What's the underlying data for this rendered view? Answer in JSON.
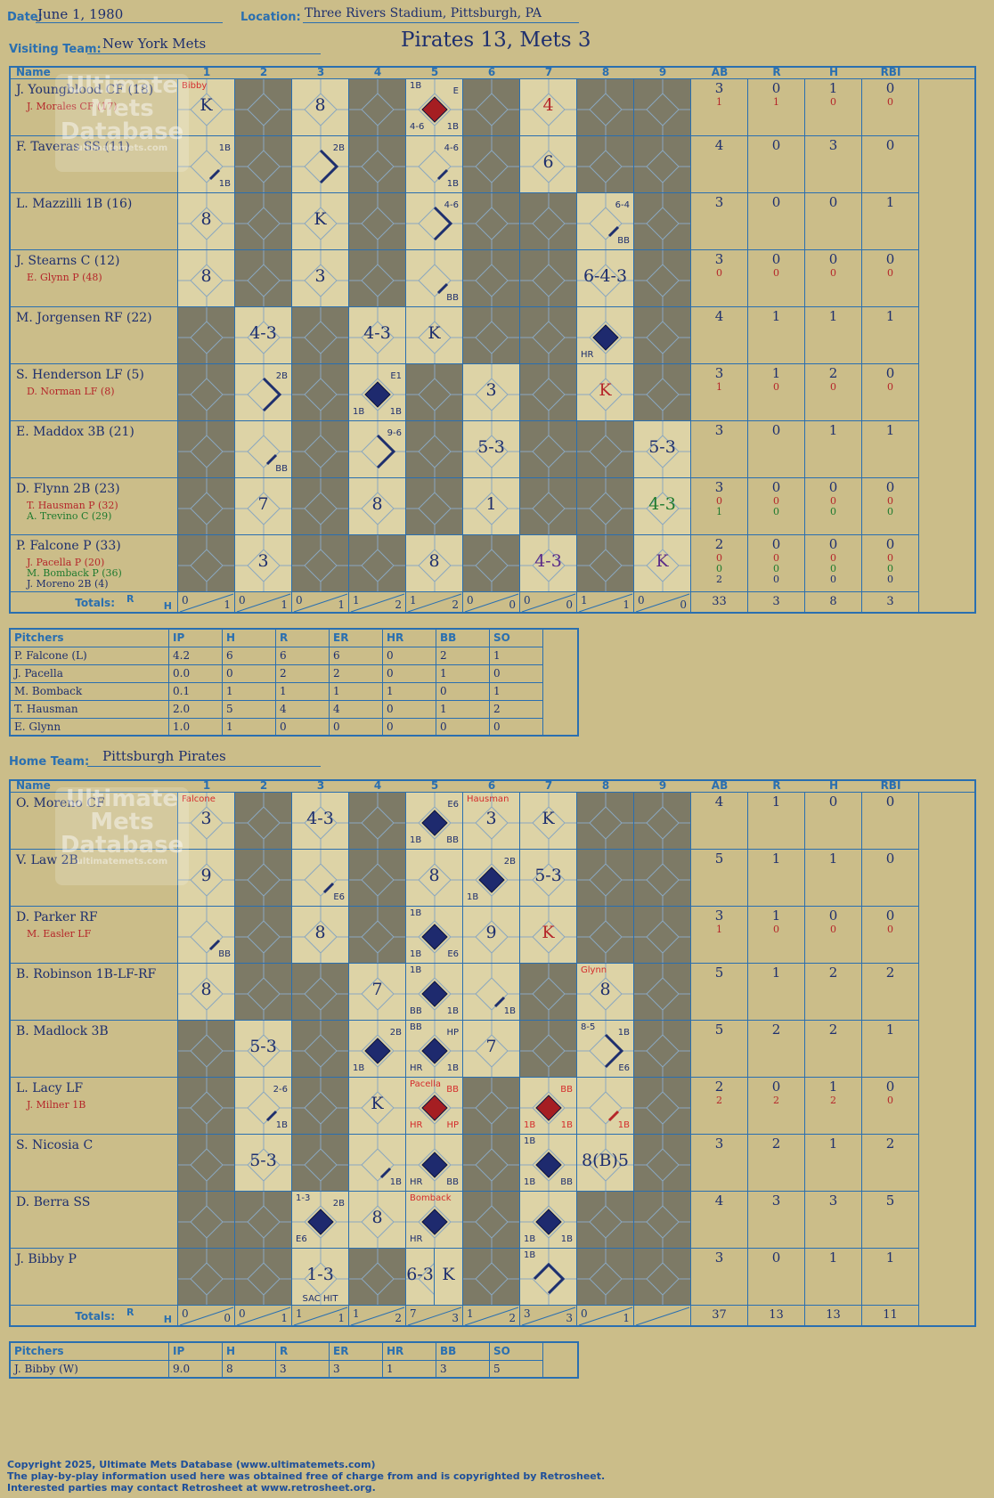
{
  "header": {
    "date_label": "Date:",
    "date": "June 1, 1980",
    "location_label": "Location:",
    "location": "Three Rivers Stadium, Pittsburgh, PA",
    "title": "Pirates 13, Mets 3",
    "visiting_label": "Visiting Team:",
    "visiting_team": "New York Mets",
    "home_label": "Home Team:",
    "home_team": "Pittsburgh Pirates"
  },
  "columns": {
    "name": "Name",
    "innings": [
      "1",
      "2",
      "3",
      "4",
      "5",
      "6",
      "7",
      "8",
      "9"
    ],
    "stats": [
      "AB",
      "R",
      "H",
      "RBI"
    ],
    "totals_label": "Totals:",
    "r": "R",
    "h": "H"
  },
  "watermark": {
    "line1": "Ultimate",
    "line2": "Mets",
    "line3": "Database",
    "url": "ultimatemets.com"
  },
  "visitors": {
    "rows": [
      {
        "name": "J. Youngblood CF (18)",
        "subs": [
          {
            "text": "J. Morales CF (17)",
            "c": "red"
          }
        ],
        "ab": [
          "3",
          "1"
        ],
        "r": [
          "0",
          "1"
        ],
        "h": [
          "1",
          "0"
        ],
        "rbi": [
          "0",
          "0"
        ],
        "cells": [
          {
            "i": 1,
            "res": "K",
            "tl": "Bibby",
            "tlc": "red"
          },
          {
            "i": 3,
            "res": "8"
          },
          {
            "i": 5,
            "dia": "red",
            "tl": "1B",
            "tr": "E",
            "bl": "4-6",
            "br": "1B"
          },
          {
            "i": 7,
            "res": "4",
            "rc": "red"
          }
        ]
      },
      {
        "name": "F. Taveras SS (11)",
        "subs": [],
        "ab": [
          "4"
        ],
        "r": [
          "0"
        ],
        "h": [
          "3"
        ],
        "rbi": [
          "0"
        ],
        "cells": [
          {
            "i": 1,
            "path": "1b",
            "tr": "1B",
            "br": "1B"
          },
          {
            "i": 3,
            "path": "2b",
            "tr": "2B"
          },
          {
            "i": 5,
            "path": "1b",
            "tr": "4-6",
            "br": "1B"
          },
          {
            "i": 7,
            "res": "6"
          }
        ]
      },
      {
        "name": "L. Mazzilli 1B (16)",
        "subs": [],
        "ab": [
          "3"
        ],
        "r": [
          "0"
        ],
        "h": [
          "0"
        ],
        "rbi": [
          "1"
        ],
        "cells": [
          {
            "i": 1,
            "res": "8"
          },
          {
            "i": 3,
            "res": "K"
          },
          {
            "i": 5,
            "path": "2b",
            "tr": "4-6"
          },
          {
            "i": 8,
            "path": "1b",
            "tr": "6-4",
            "br": "BB"
          }
        ]
      },
      {
        "name": "J. Stearns C (12)",
        "subs": [
          {
            "text": "E. Glynn P (48)",
            "c": "red"
          }
        ],
        "ab": [
          "3",
          "0"
        ],
        "r": [
          "0",
          "0"
        ],
        "h": [
          "0",
          "0"
        ],
        "rbi": [
          "0",
          "0"
        ],
        "cells": [
          {
            "i": 1,
            "res": "8"
          },
          {
            "i": 3,
            "res": "3"
          },
          {
            "i": 5,
            "path": "1b",
            "br": "BB"
          },
          {
            "i": 8,
            "res": "6-4-3"
          }
        ]
      },
      {
        "name": "M. Jorgensen RF (22)",
        "subs": [],
        "ab": [
          "4"
        ],
        "r": [
          "1"
        ],
        "h": [
          "1"
        ],
        "rbi": [
          "1"
        ],
        "cells": [
          {
            "i": 2,
            "res": "4-3"
          },
          {
            "i": 4,
            "res": "4-3"
          },
          {
            "i": 5,
            "res": "K"
          },
          {
            "i": 8,
            "dia": "blue",
            "bl": "HR"
          }
        ]
      },
      {
        "name": "S. Henderson LF (5)",
        "subs": [
          {
            "text": "D. Norman LF (8)",
            "c": "red"
          }
        ],
        "ab": [
          "3",
          "1"
        ],
        "r": [
          "1",
          "0"
        ],
        "h": [
          "2",
          "0"
        ],
        "rbi": [
          "0",
          "0"
        ],
        "cells": [
          {
            "i": 2,
            "path": "2b",
            "tr": "2B"
          },
          {
            "i": 4,
            "dia": "blue",
            "tr": "E1",
            "bl": "1B",
            "br": "1B"
          },
          {
            "i": 6,
            "res": "3"
          },
          {
            "i": 8,
            "res": "K",
            "rc": "red"
          }
        ]
      },
      {
        "name": "E. Maddox 3B (21)",
        "subs": [],
        "ab": [
          "3"
        ],
        "r": [
          "0"
        ],
        "h": [
          "1"
        ],
        "rbi": [
          "1"
        ],
        "cells": [
          {
            "i": 2,
            "path": "1b",
            "br": "BB"
          },
          {
            "i": 4,
            "path": "2b",
            "tr": "9-6"
          },
          {
            "i": 6,
            "res": "5-3"
          },
          {
            "i": 9,
            "res": "5-3"
          }
        ]
      },
      {
        "name": "D. Flynn 2B (23)",
        "subs": [
          {
            "text": "T. Hausman P (32)",
            "c": "red"
          },
          {
            "text": "A. Trevino C (29)",
            "c": "g"
          }
        ],
        "ab": [
          "3",
          "0",
          "1"
        ],
        "r": [
          "0",
          "0",
          "0"
        ],
        "h": [
          "0",
          "0",
          "0"
        ],
        "rbi": [
          "0",
          "0",
          "0"
        ],
        "cells": [
          {
            "i": 2,
            "res": "7"
          },
          {
            "i": 4,
            "res": "8"
          },
          {
            "i": 6,
            "res": "1"
          },
          {
            "i": 9,
            "res": "4-3",
            "rc": "grn"
          }
        ]
      },
      {
        "name": "P. Falcone P (33)",
        "subs": [
          {
            "text": "J. Pacella P (20)",
            "c": "red"
          },
          {
            "text": "M. Bomback P (36)",
            "c": "g"
          },
          {
            "text": "J. Moreno 2B (4)",
            "c": "b"
          }
        ],
        "ab": [
          "2",
          "0",
          "0",
          "2"
        ],
        "r": [
          "0",
          "0",
          "0",
          "0"
        ],
        "h": [
          "0",
          "0",
          "0",
          "0"
        ],
        "rbi": [
          "0",
          "0",
          "0",
          "0"
        ],
        "cells": [
          {
            "i": 2,
            "res": "3"
          },
          {
            "i": 5,
            "res": "8"
          },
          {
            "i": 7,
            "res": "4-3",
            "rc": "pur"
          },
          {
            "i": 9,
            "res": "K",
            "rc": "pur"
          }
        ]
      }
    ],
    "totals": {
      "innings": [
        [
          "0",
          "1"
        ],
        [
          "0",
          "1"
        ],
        [
          "0",
          "1"
        ],
        [
          "1",
          "2"
        ],
        [
          "1",
          "2"
        ],
        [
          "0",
          "0"
        ],
        [
          "0",
          "0"
        ],
        [
          "1",
          "1"
        ],
        [
          "0",
          "0"
        ]
      ],
      "ab": "33",
      "r": "3",
      "h": "8",
      "rbi": "3"
    },
    "pitchers": {
      "header": [
        "Pitchers",
        "IP",
        "H",
        "R",
        "ER",
        "HR",
        "BB",
        "SO"
      ],
      "rows": [
        [
          "P. Falcone (L)",
          "4.2",
          "6",
          "6",
          "6",
          "0",
          "2",
          "1"
        ],
        [
          "J. Pacella",
          "0.0",
          "0",
          "2",
          "2",
          "0",
          "1",
          "0"
        ],
        [
          "M. Bomback",
          "0.1",
          "1",
          "1",
          "1",
          "1",
          "0",
          "1"
        ],
        [
          "T. Hausman",
          "2.0",
          "5",
          "4",
          "4",
          "0",
          "1",
          "2"
        ],
        [
          "E. Glynn",
          "1.0",
          "1",
          "0",
          "0",
          "0",
          "0",
          "0"
        ]
      ]
    }
  },
  "home": {
    "rows": [
      {
        "name": "O. Moreno CF",
        "subs": [],
        "ab": [
          "4"
        ],
        "r": [
          "1"
        ],
        "h": [
          "0"
        ],
        "rbi": [
          "0"
        ],
        "cells": [
          {
            "i": 1,
            "res": "3",
            "tl": "Falcone",
            "tlc": "red"
          },
          {
            "i": 3,
            "res": "4-3"
          },
          {
            "i": 5,
            "dia": "blue",
            "tr": "E6",
            "bl": "1B",
            "br": "BB"
          },
          {
            "i": 6,
            "res": "3",
            "tl": "Hausman",
            "tlc": "red"
          },
          {
            "i": 7,
            "res": "K"
          }
        ]
      },
      {
        "name": "V. Law 2B",
        "subs": [],
        "ab": [
          "5"
        ],
        "r": [
          "1"
        ],
        "h": [
          "1"
        ],
        "rbi": [
          "0"
        ],
        "cells": [
          {
            "i": 1,
            "res": "9"
          },
          {
            "i": 3,
            "path": "1b",
            "br": "E6"
          },
          {
            "i": 5,
            "res": "8"
          },
          {
            "i": 6,
            "dia": "blue",
            "tr": "2B",
            "bl": "1B"
          },
          {
            "i": 7,
            "res": "5-3"
          }
        ]
      },
      {
        "name": "D. Parker RF",
        "subs": [
          {
            "text": "M. Easler LF",
            "c": "red"
          }
        ],
        "ab": [
          "3",
          "1"
        ],
        "r": [
          "1",
          "0"
        ],
        "h": [
          "0",
          "0"
        ],
        "rbi": [
          "0",
          "0"
        ],
        "cells": [
          {
            "i": 1,
            "path": "1b",
            "br": "BB"
          },
          {
            "i": 3,
            "res": "8"
          },
          {
            "i": 5,
            "dia": "blue",
            "tl": "1B",
            "bl": "1B",
            "br": "E6"
          },
          {
            "i": 6,
            "res": "9"
          },
          {
            "i": 7,
            "res": "K",
            "rc": "red"
          }
        ]
      },
      {
        "name": "B. Robinson 1B-LF-RF",
        "subs": [],
        "ab": [
          "5"
        ],
        "r": [
          "1"
        ],
        "h": [
          "2"
        ],
        "rbi": [
          "2"
        ],
        "cells": [
          {
            "i": 1,
            "res": "8"
          },
          {
            "i": 4,
            "res": "7"
          },
          {
            "i": 5,
            "dia": "blue",
            "tl": "1B",
            "bl": "BB",
            "br": "1B"
          },
          {
            "i": 6,
            "path": "1b",
            "br": "1B"
          },
          {
            "i": 8,
            "res": "8",
            "tl": "Glynn",
            "tlc": "red"
          }
        ]
      },
      {
        "name": "B. Madlock 3B",
        "subs": [],
        "ab": [
          "5"
        ],
        "r": [
          "2"
        ],
        "h": [
          "2"
        ],
        "rbi": [
          "1"
        ],
        "cells": [
          {
            "i": 2,
            "res": "5-3"
          },
          {
            "i": 4,
            "dia": "blue",
            "tr": "2B",
            "bl": "1B"
          },
          {
            "i": 5,
            "dia": "blue",
            "tl": "BB",
            "tr": "HP",
            "bl": "HR",
            "br": "1B"
          },
          {
            "i": 6,
            "res": "7"
          },
          {
            "i": 8,
            "path": "2b",
            "tl": "8-5",
            "tr": "1B",
            "br": "E6"
          }
        ]
      },
      {
        "name": "L. Lacy LF",
        "subs": [
          {
            "text": "J. Milner 1B",
            "c": "red"
          }
        ],
        "ab": [
          "2",
          "2"
        ],
        "r": [
          "0",
          "2"
        ],
        "h": [
          "1",
          "2"
        ],
        "rbi": [
          "0",
          "0"
        ],
        "cells": [
          {
            "i": 2,
            "path": "1b",
            "tr": "2-6",
            "br": "1B"
          },
          {
            "i": 4,
            "res": "K"
          },
          {
            "i": 5,
            "dia": "red",
            "tl": "Pacella",
            "tlc": "red",
            "tr": "BB",
            "trc": "red",
            "bl": "HR",
            "blc": "red",
            "br": "HP",
            "brc": "red"
          },
          {
            "i": 7,
            "dia": "red",
            "tr": "BB",
            "trc": "red",
            "bl": "1B",
            "blc": "red",
            "br": "1B",
            "brc": "red"
          },
          {
            "i": 8,
            "path": "1br",
            "br": "1B",
            "brc": "red"
          }
        ]
      },
      {
        "name": "S. Nicosia C",
        "subs": [],
        "ab": [
          "3"
        ],
        "r": [
          "2"
        ],
        "h": [
          "1"
        ],
        "rbi": [
          "2"
        ],
        "cells": [
          {
            "i": 2,
            "res": "5-3"
          },
          {
            "i": 4,
            "path": "1b",
            "br": "1B"
          },
          {
            "i": 5,
            "dia": "blue",
            "bl": "HR",
            "br": "BB"
          },
          {
            "i": 7,
            "dia": "blue",
            "tl": "1B",
            "bl": "1B",
            "br": "BB"
          },
          {
            "i": 8,
            "res": "8(B)5"
          }
        ]
      },
      {
        "name": "D. Berra SS",
        "subs": [],
        "ab": [
          "4"
        ],
        "r": [
          "3"
        ],
        "h": [
          "3"
        ],
        "rbi": [
          "5"
        ],
        "cells": [
          {
            "i": 3,
            "dia": "blue",
            "tl": "1-3",
            "tr": "2B",
            "bl": "E6"
          },
          {
            "i": 4,
            "res": "8"
          },
          {
            "i": 5,
            "dia": "blue",
            "tl": "Bomback",
            "tlc": "red",
            "bl": "HR"
          },
          {
            "i": 7,
            "dia": "blue",
            "bl": "1B",
            "br": "1B"
          }
        ]
      },
      {
        "name": "J. Bibby P",
        "subs": [],
        "ab": [
          "3"
        ],
        "r": [
          "0"
        ],
        "h": [
          "1"
        ],
        "rbi": [
          "1"
        ],
        "cells": [
          {
            "i": 3,
            "res": "1-3",
            "bc": "SAC HIT"
          },
          {
            "i": 5,
            "res": "6-3"
          },
          {
            "i": 5.5,
            "res": "K"
          },
          {
            "i": 7,
            "path": "open",
            "tl": "1B"
          }
        ]
      }
    ],
    "totals": {
      "innings": [
        [
          "0",
          "0"
        ],
        [
          "0",
          "1"
        ],
        [
          "1",
          "1"
        ],
        [
          "1",
          "2"
        ],
        [
          "7",
          "3"
        ],
        [
          "1",
          "2"
        ],
        [
          "3",
          "3"
        ],
        [
          "0",
          "1"
        ],
        [
          "",
          ""
        ]
      ],
      "ab": "37",
      "r": "13",
      "h": "13",
      "rbi": "11"
    },
    "pitchers": {
      "header": [
        "Pitchers",
        "IP",
        "H",
        "R",
        "ER",
        "HR",
        "BB",
        "SO"
      ],
      "rows": [
        [
          "J. Bibby (W)",
          "9.0",
          "8",
          "3",
          "3",
          "1",
          "3",
          "5"
        ]
      ]
    }
  },
  "footer": {
    "line1": "Copyright 2025, Ultimate Mets Database (www.ultimatemets.com)",
    "line2": "The play-by-play information used here was obtained free of charge from and is copyrighted by Retrosheet.",
    "line3": "Interested parties may contact Retrosheet at www.retrosheet.org."
  },
  "colors": {
    "bg": "#cbbd89",
    "grid": "#2a6fb0",
    "ink": "#1e2f6e",
    "red": "#b5262a",
    "shade": "#7d7a66",
    "live": "#ddd3a6"
  }
}
